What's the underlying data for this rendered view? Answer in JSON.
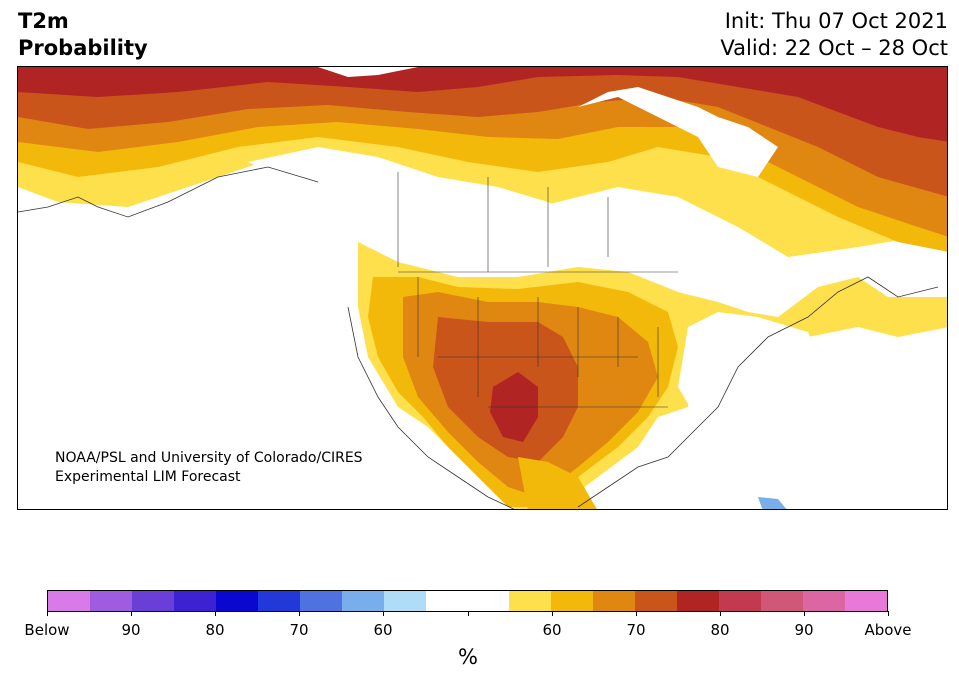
{
  "title": {
    "variable": "T2m",
    "product": "Probability",
    "init": "Init: Thu 07 Oct 2021",
    "valid": "Valid: 22 Oct – 28 Oct"
  },
  "credit": {
    "line1": "NOAA/PSL and University of Colorado/CIRES",
    "line2": "Experimental LIM Forecast"
  },
  "colorbar": {
    "unit": "%",
    "colors": [
      "#d87be8",
      "#a05ce0",
      "#6a3fd8",
      "#3d22d4",
      "#0a08d0",
      "#2338d9",
      "#4e72e0",
      "#78aeeb",
      "#afdcf7",
      "#ffffff",
      "#ffffff",
      "#fde04c",
      "#f3b90a",
      "#e08712",
      "#c9551a",
      "#b12424",
      "#c33950",
      "#d05778",
      "#dc65a4",
      "#e879d8"
    ],
    "labels": [
      "Below",
      "90",
      "80",
      "70",
      "60",
      "",
      "60",
      "70",
      "80",
      "90",
      "Above"
    ]
  },
  "map": {
    "regions": [
      {
        "name": "arctic-canada-high-probability",
        "category": "above-75"
      },
      {
        "name": "canada-above-normal-band",
        "category": "above-70"
      },
      {
        "name": "hudson-bay-above-normal",
        "category": "above-65"
      },
      {
        "name": "central-us-above-normal",
        "category": "above-60"
      },
      {
        "name": "southern-plains-peak",
        "category": "above-75"
      },
      {
        "name": "mexico-above-normal",
        "category": "above-65"
      },
      {
        "name": "eastern-us-near-normal",
        "category": "near-normal"
      },
      {
        "name": "caribbean-below-normal",
        "category": "below-60"
      }
    ]
  }
}
